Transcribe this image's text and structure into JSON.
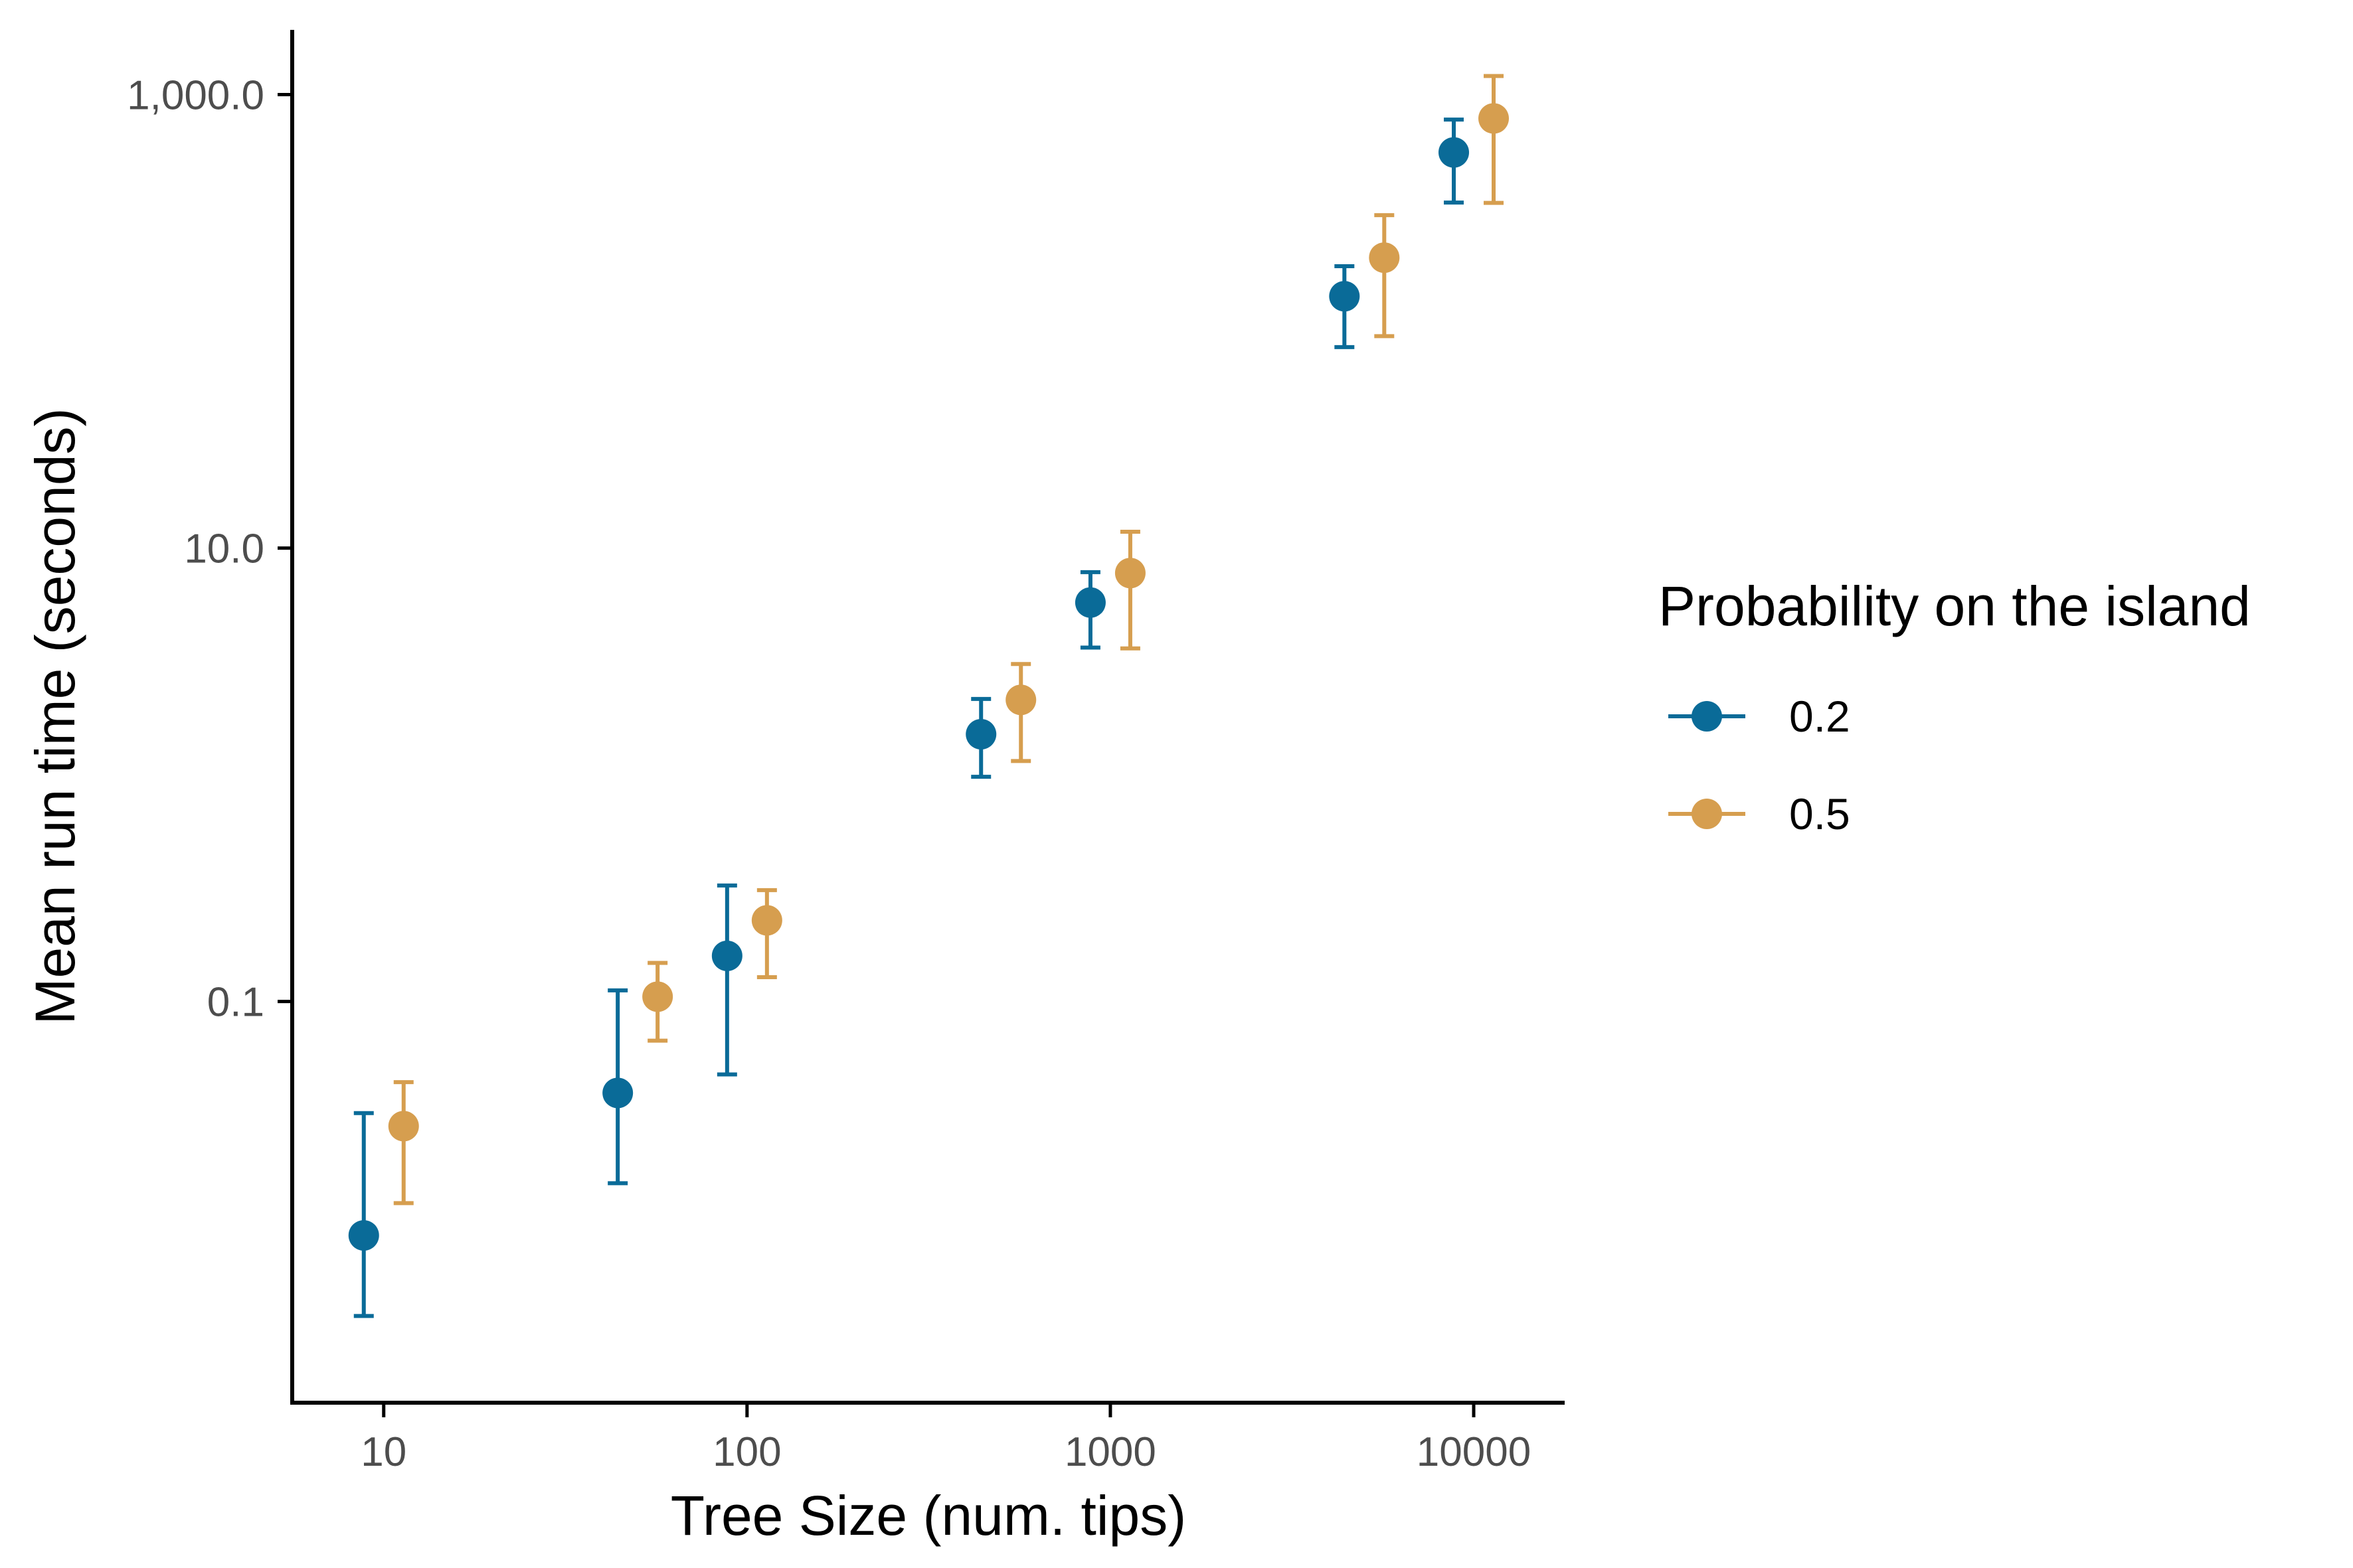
{
  "chart_data": {
    "type": "scatter",
    "xlabel": "Tree Size (num. tips)",
    "ylabel": "Mean run time (seconds)",
    "x_scale": "log10",
    "y_scale": "log10",
    "x_ticks": [
      10,
      100,
      1000,
      10000
    ],
    "x_tick_labels": [
      "10",
      "100",
      "1000",
      "10000"
    ],
    "y_ticks": [
      0.1,
      10,
      1000
    ],
    "y_tick_labels": [
      "0.1",
      "10.0",
      "1,000.0"
    ],
    "xlim": [
      5.6,
      17800
    ],
    "ylim": [
      0.0017,
      1930
    ],
    "grid": false,
    "legend": {
      "title": "Probability on the island",
      "placement": "right",
      "entries": [
        "0.2",
        "0.5"
      ]
    },
    "error_bars": true,
    "series": [
      {
        "name": "0.2",
        "color": "#0a6b98",
        "points": [
          {
            "x": 10,
            "y": 0.0093,
            "ymin": 0.0041,
            "ymax": 0.0322
          },
          {
            "x": 50,
            "y": 0.0395,
            "ymin": 0.0158,
            "ymax": 0.112
          },
          {
            "x": 100,
            "y": 0.159,
            "ymin": 0.0477,
            "ymax": 0.325
          },
          {
            "x": 500,
            "y": 1.51,
            "ymin": 0.98,
            "ymax": 2.16
          },
          {
            "x": 1000,
            "y": 5.75,
            "ymin": 3.64,
            "ymax": 7.83
          },
          {
            "x": 5000,
            "y": 129,
            "ymin": 77,
            "ymax": 175
          },
          {
            "x": 10000,
            "y": 556,
            "ymin": 334,
            "ymax": 776
          }
        ]
      },
      {
        "name": "0.5",
        "color": "#d69e4f",
        "points": [
          {
            "x": 10,
            "y": 0.0282,
            "ymin": 0.0129,
            "ymax": 0.0441
          },
          {
            "x": 50,
            "y": 0.105,
            "ymin": 0.0672,
            "ymax": 0.148
          },
          {
            "x": 100,
            "y": 0.228,
            "ymin": 0.128,
            "ymax": 0.31
          },
          {
            "x": 500,
            "y": 2.14,
            "ymin": 1.15,
            "ymax": 3.08
          },
          {
            "x": 1000,
            "y": 7.76,
            "ymin": 3.61,
            "ymax": 11.8
          },
          {
            "x": 5000,
            "y": 191,
            "ymin": 86,
            "ymax": 294
          },
          {
            "x": 10000,
            "y": 785,
            "ymin": 333,
            "ymax": 1208
          }
        ]
      }
    ]
  }
}
